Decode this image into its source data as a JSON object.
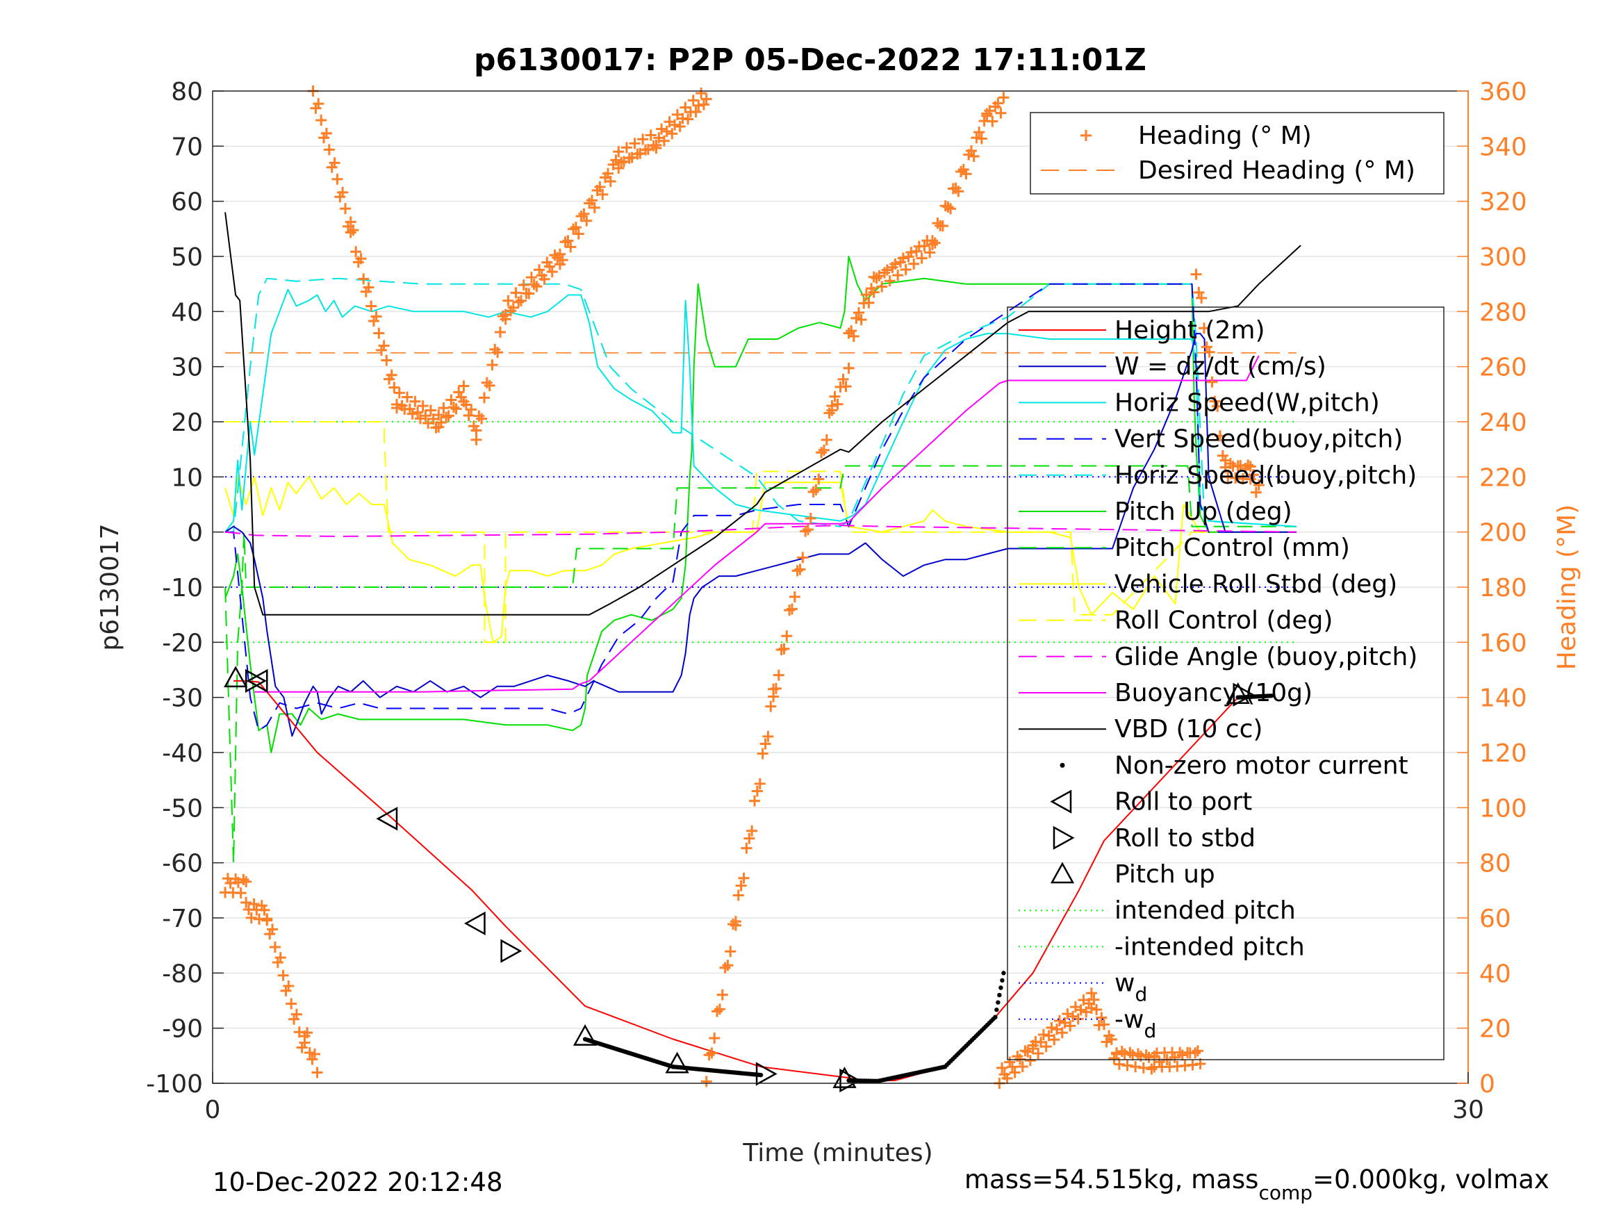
{
  "chart_data": {
    "type": "line",
    "title": "p6130017: P2P 05-Dec-2022 17:11:01Z",
    "xlabel": "Time (minutes)",
    "ylabel": "p6130017",
    "ylabel_right": "Heading (°M)",
    "xlim": [
      0,
      30
    ],
    "ylim": [
      -100,
      80
    ],
    "ylim_right": [
      0,
      360
    ],
    "x_ticks": [
      0,
      30
    ],
    "y_ticks": [
      80,
      70,
      60,
      50,
      40,
      30,
      20,
      10,
      0,
      -10,
      -20,
      -30,
      -40,
      -50,
      -60,
      -70,
      -80,
      -90,
      -100
    ],
    "y_ticks_right": [
      360,
      340,
      320,
      300,
      280,
      260,
      240,
      220,
      200,
      180,
      160,
      140,
      120,
      100,
      80,
      60,
      40,
      20,
      0
    ],
    "grid": "horizontal",
    "colors": {
      "heading": "#ff7f27",
      "desired": "#ff7f27",
      "height": "#ff0000",
      "w": "#0000cc",
      "horiz_w": "#00e5e5",
      "vert_buoy": "#0000ff",
      "horiz_buoy": "#00e5e5",
      "pitch": "#00e000",
      "pitch_ctl": "#00e000",
      "roll": "#ffff00",
      "roll_ctl": "#ffff00",
      "glide": "#ff00ff",
      "buoy": "#ff00ff",
      "vbd": "#000000",
      "wd": "#0000ff",
      "intended": "#00ff00"
    },
    "legend_top": [
      {
        "label": "Heading (° M)",
        "style": "plus",
        "color": "#ff7f27"
      },
      {
        "label": "Desired Heading (° M)",
        "style": "dash",
        "color": "#ff7f27"
      }
    ],
    "legend_main": [
      {
        "label": "Height (2m)",
        "style": "solid",
        "color": "#ff0000"
      },
      {
        "label": "W = dz/dt (cm/s)",
        "style": "solid",
        "color": "#0000cc"
      },
      {
        "label": "Horiz Speed(W,pitch)",
        "style": "solid",
        "color": "#00e5e5"
      },
      {
        "label": "Vert Speed(buoy,pitch)",
        "style": "dash",
        "color": "#0000ff"
      },
      {
        "label": "Horiz Speed(buoy,pitch)",
        "style": "dash",
        "color": "#00e5e5"
      },
      {
        "label": "Pitch Up (deg)",
        "style": "solid",
        "color": "#00e000"
      },
      {
        "label": "Pitch Control (mm)",
        "style": "dash",
        "color": "#00e000"
      },
      {
        "label": "Vehicle Roll Stbd (deg)",
        "style": "solid",
        "color": "#ffff00"
      },
      {
        "label": "Roll Control (deg)",
        "style": "dash",
        "color": "#ffff00"
      },
      {
        "label": "Glide Angle (buoy,pitch)",
        "style": "dash",
        "color": "#ff00ff"
      },
      {
        "label": "Buoyancy (10g)",
        "style": "solid",
        "color": "#ff00ff"
      },
      {
        "label": "VBD (10 cc)",
        "style": "solid",
        "color": "#000000"
      },
      {
        "label": "Non-zero motor current",
        "style": "dot",
        "color": "#000000"
      },
      {
        "label": "Roll to port",
        "style": "tri-left",
        "color": "#000000"
      },
      {
        "label": "Roll to stbd",
        "style": "tri-right",
        "color": "#000000"
      },
      {
        "label": "Pitch up",
        "style": "tri-up",
        "color": "#000000"
      },
      {
        "label": "intended pitch",
        "style": "dotted",
        "color": "#00ff00"
      },
      {
        "label": "-intended pitch",
        "style": "dotted",
        "color": "#00ff00"
      },
      {
        "label": "w",
        "sub": "d",
        "style": "dotted",
        "color": "#0000ff"
      },
      {
        "label": "-w",
        "sub": "d",
        "style": "dotted",
        "color": "#0000ff"
      }
    ],
    "series": {
      "height": {
        "x": [
          0.5,
          0.7,
          1.1,
          2.5,
          4.3,
          6.2,
          7.0,
          8.9,
          11.0,
          13.1,
          15.2,
          15.5,
          16.3,
          17.5,
          18.7,
          19.6,
          20.7,
          21.3,
          24.5,
          25.3
        ],
        "y": [
          -27,
          -27,
          -27.2,
          -40,
          -52,
          -65,
          -71.5,
          -86,
          -92,
          -97,
          -99,
          -99.6,
          -99.5,
          -97,
          -88,
          -80,
          -65,
          -56,
          -30,
          -29.7
        ]
      },
      "w": {
        "x": [
          0.3,
          0.5,
          0.7,
          0.9,
          1.0,
          1.2,
          1.3,
          1.5,
          1.7,
          1.9,
          2.2,
          2.4,
          2.5,
          2.6,
          2.8,
          3.0,
          3.3,
          3.6,
          4.0,
          4.4,
          4.8,
          5.2,
          5.6,
          6.0,
          6.4,
          6.8,
          7.2,
          7.6,
          8.0,
          8.5,
          8.9,
          9.1,
          9.4,
          9.7,
          10.2,
          10.6,
          11.0,
          11.2,
          11.3,
          11.4,
          11.5,
          11.7,
          11.9,
          12.1,
          12.5,
          13.0,
          13.5,
          14.0,
          14.5,
          15.2,
          15.4,
          15.6,
          16.0,
          16.5,
          17.0,
          17.5,
          18.0,
          18.5,
          19.0,
          19.5,
          20.0,
          20.5,
          21.0,
          21.5,
          22.0,
          22.5,
          23.0,
          23.4,
          23.5,
          23.6,
          23.7,
          23.8,
          24.2,
          24.8,
          25.3,
          25.9
        ],
        "y": [
          0,
          1,
          0,
          -2,
          -5,
          -12,
          -18,
          -28,
          -30,
          -37,
          -31,
          -28,
          -29,
          -33,
          -30,
          -28,
          -29,
          -27,
          -30,
          -28,
          -29,
          -27,
          -29,
          -28,
          -30,
          -28,
          -28,
          -27,
          -26,
          -27,
          -28,
          -27,
          -28,
          -29,
          -29,
          -29,
          -29,
          -26,
          -22,
          -15,
          -12,
          -10,
          -9,
          -8,
          -8,
          -7,
          -6,
          -5,
          -4,
          -4,
          -3,
          -2,
          -5,
          -8,
          -6,
          -5,
          -5,
          -4,
          -3,
          -3,
          -3,
          -3,
          -3,
          -3,
          8,
          15,
          24,
          33,
          36,
          36,
          35,
          10,
          0,
          0,
          0,
          0
        ]
      },
      "vbd": {
        "x": [
          0.3,
          0.55,
          0.65,
          0.9,
          1.0,
          1.2,
          8.8,
          9.0,
          9.5,
          10.2,
          11.0,
          12.0,
          13.0,
          13.2,
          15.0,
          15.2,
          16.0,
          17.0,
          18.0,
          19.0,
          19.5,
          20.0,
          21.5,
          23.8,
          24.5,
          25.0,
          26.0
        ],
        "y": [
          58,
          43,
          42,
          13,
          -10,
          -15,
          -15,
          -15,
          -13,
          -10,
          -6,
          -1,
          5,
          7.2,
          15,
          14.5,
          20,
          26,
          32,
          38,
          40,
          40,
          40,
          40,
          41,
          45,
          52
        ]
      }
    }
  },
  "footer": {
    "timestamp": "10-Dec-2022 20:12:48",
    "mass": "mass=54.515kg, mass",
    "mass_sub": "comp",
    "mass_rest": "=0.000kg, volmax"
  }
}
